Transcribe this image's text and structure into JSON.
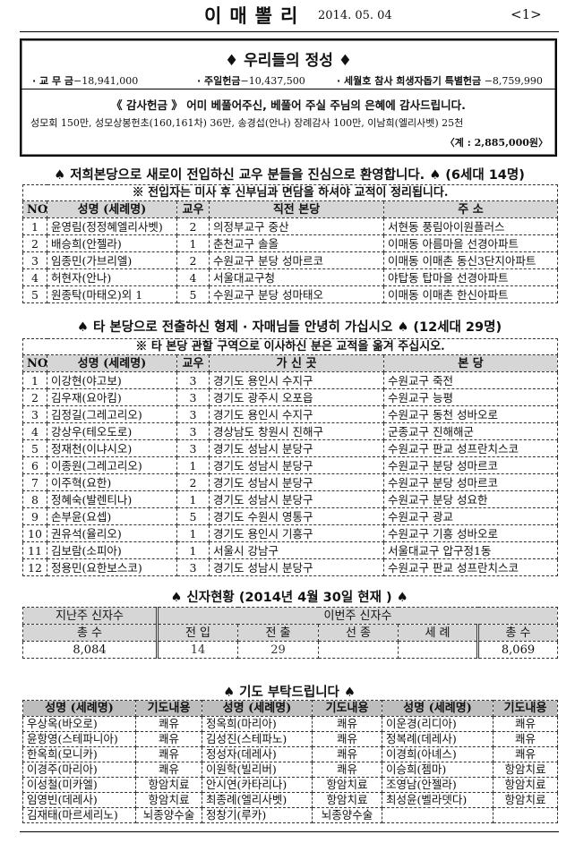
{
  "header": {
    "title": "이매뽈리",
    "date": "2014. 05. 04",
    "page": "<1>"
  },
  "offering": {
    "title": "♦ 우리들의 정성 ♦",
    "items": [
      {
        "label": "· 교 무 금",
        "value": "−18,941,000"
      },
      {
        "label": "· 주일헌금",
        "value": "−10,437,500"
      },
      {
        "label": "· 세월호 참사 희생자돕기 특별헌금",
        "value": "−8,759,990"
      }
    ],
    "thanks_heading": "《 감사헌금 》 어미 베풀어주신, 베풀어 주실 주님의 은혜에 감사드립니다.",
    "thanks_detail": "성모회 150만, 성모상봉헌초(160,161차) 36만, 송경섭(안나) 장례감사 100만, 이남희(엘리사벳) 25천",
    "thanks_total": "〈계 : 2,885,000원〉"
  },
  "transfer_in": {
    "heading": "♠ 저희본당으로 새로이 전입하신 교우 분들을 진심으로 환영합니다. ♠ (6세대 14명)",
    "notice": "※ 전입자는 미사 후 신부님과 면담을 하셔야 교적이 정리됩니다.",
    "columns": [
      "NO",
      "성명 (세례명)",
      "교우",
      "직전 본당",
      "주 소"
    ],
    "rows": [
      [
        "1",
        "윤영림(정정혜엘리사벳)",
        "2",
        "의정부교구 중산",
        "서현동 풍림아이원플러스"
      ],
      [
        "2",
        "배승희(안젤라)",
        "1",
        "춘천교구 솔올",
        "이매동 아름마을 선경아파트"
      ],
      [
        "3",
        "임종민(가브리엘)",
        "2",
        "수원교구 분당 성마르코",
        "이매동 이매촌 동신3단지아파트"
      ],
      [
        "4",
        "허현자(안나)",
        "4",
        "서울대교구청",
        "야탑동 탑마을 선경아파트"
      ],
      [
        "5",
        "원종탁(마태오)외 1",
        "5",
        "수원교구 분당 성마태오",
        "이매동 이매촌 한신아파트"
      ]
    ]
  },
  "transfer_out": {
    "heading": "♠ 타 본당으로 전출하신 형제 · 자매님들 안녕히 가십시오 ♠ (12세대 29명)",
    "notice": "※ 타 본당 관할 구역으로 이사하신 분은 교적을 옮겨 주십시오.",
    "columns": [
      "NO",
      "성명 (세례명)",
      "교우",
      "가 신 곳",
      "본 당"
    ],
    "rows": [
      [
        "1",
        "이강현(야고보)",
        "3",
        "경기도 용인시 수지구",
        "수원교구 죽전"
      ],
      [
        "2",
        "김우재(요아킴)",
        "3",
        "경기도 광주시 오포읍",
        "수원교구 능평"
      ],
      [
        "3",
        "김정길(그레고리오)",
        "3",
        "경기도 용인시 수지구",
        "수원교구 동천 성바오로"
      ],
      [
        "4",
        "강상우(테오도로)",
        "3",
        "경상남도 창원시 진해구",
        "군종교구 진해해군"
      ],
      [
        "5",
        "정재천(이냐시오)",
        "3",
        "경기도 성남시 분당구",
        "수원교구 판교 성프란치스코"
      ],
      [
        "6",
        "이종원(그레고리오)",
        "1",
        "경기도 성남시 분당구",
        "수원교구 분당 성마르코"
      ],
      [
        "7",
        "이주혁(요한)",
        "2",
        "경기도 성남시 분당구",
        "수원교구 분당 성마르코"
      ],
      [
        "8",
        "정혜숙(발렌티나)",
        "1",
        "경기도 성남시 분당구",
        "수원교구 분당 성요한"
      ],
      [
        "9",
        "손부윤(요셉)",
        "5",
        "경기도 수원시 영통구",
        "수원교구 광교"
      ],
      [
        "10",
        "권유석(율리오)",
        "1",
        "경기도 용인시 기흥구",
        "수원교구 기흥 성바오로"
      ],
      [
        "11",
        "김보람(소피아)",
        "1",
        "서울시 강남구",
        "서울대교구 압구정1동"
      ],
      [
        "12",
        "정용민(요한보스코)",
        "3",
        "경기도 성남시 분당구",
        "수원교구 판교 성프란치스코"
      ]
    ]
  },
  "believers": {
    "heading": "♠ 신자현황 (2014년  4월  30일  현재 ) ♠",
    "last_week_label": "지난주 신자수",
    "this_week_label": "이번주 신자수",
    "total_label": "총 수",
    "cols": [
      "전 입",
      "전 출",
      "선 종",
      "세 례"
    ],
    "last_total": "8,084",
    "values": [
      "14",
      "29",
      "",
      ""
    ],
    "this_total": "8,069"
  },
  "prayer": {
    "heading": "♠ 기도 부탁드립니다 ♠",
    "name_col": "성명 (세례명)",
    "content_col": "기도내용",
    "rows": [
      [
        "우상옥(바오로)",
        "쾌유",
        "정옥희(마리아)",
        "쾌유",
        "이운경(리디아)",
        "쾌유"
      ],
      [
        "윤항영(스테파니아)",
        "쾌유",
        "김성진(스테파노)",
        "쾌유",
        "정복례(데레사)",
        "쾌유"
      ],
      [
        "한옥희(모니카)",
        "쾌유",
        "정성자(데레사)",
        "쾌유",
        "이경희(아녜스)",
        "쾌유"
      ],
      [
        "이경주(마리아)",
        "쾌유",
        "이원학(빌리버)",
        "쾌유",
        "이승희(젬마)",
        "항암치료"
      ],
      [
        "이성철(미카엘)",
        "항암치료",
        "안시연(카타리나)",
        "항암치료",
        "조영남(안젤라)",
        "항암치료"
      ],
      [
        "임영빈(데레사)",
        "항암치료",
        "최종례(엘리사벳)",
        "항암치료",
        "최성윤(벨라뎃다)",
        "항암치료"
      ],
      [
        "김재태(마르세리노)",
        "뇌종양수술",
        "정창기(루카)",
        "뇌종양수술",
        "",
        ""
      ]
    ]
  }
}
